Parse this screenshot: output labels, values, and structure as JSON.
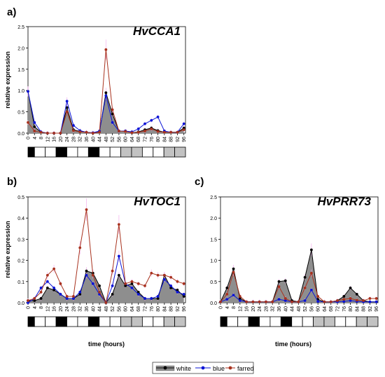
{
  "panel_labels": [
    "a)",
    "b)",
    "c)"
  ],
  "x_axis_title": "time (hours)",
  "y_axis_title": "relative expression",
  "legend_items": [
    {
      "name": "white",
      "color": "#000000"
    },
    {
      "name": "blue",
      "color": "#0a14d6"
    },
    {
      "name": "farred",
      "color": "#a8321e"
    }
  ],
  "colors": {
    "white_fill": "#8e8e8e",
    "error_bar": "#f2a6ec",
    "night_bar": "#000000",
    "day_bar": "#ffffff",
    "dim_bar": "#c2c2c2"
  },
  "chart_data": [
    {
      "type": "line",
      "title": "HvCCA1",
      "ylabel": "relative expression",
      "xlabel": "",
      "x": [
        0,
        4,
        8,
        12,
        16,
        20,
        24,
        28,
        32,
        36,
        40,
        44,
        48,
        52,
        56,
        60,
        64,
        68,
        72,
        76,
        80,
        84,
        88,
        92,
        96
      ],
      "x_tick_labels": [
        "0",
        "4",
        "8",
        "12",
        "16",
        "20",
        "24",
        "28",
        "32",
        "36",
        "40",
        "44",
        "48",
        "52",
        "56",
        "60",
        "64",
        "68",
        "72",
        "76",
        "80",
        "84",
        "88",
        "92",
        "96"
      ],
      "ylim": [
        0,
        2.5
      ],
      "y_ticks": [
        "0.0",
        "0.5",
        "1.0",
        "1.5",
        "2.0",
        "2.5"
      ],
      "light_regime": [
        "dark",
        "light",
        "light",
        "dark",
        "light",
        "light",
        "dark",
        "light",
        "light",
        "dim",
        "dim",
        "light",
        "light",
        "dim",
        "dim"
      ],
      "series": [
        {
          "name": "white",
          "values": [
            0.98,
            0.15,
            0.02,
            0.0,
            0.0,
            0.0,
            0.6,
            0.08,
            0.04,
            0.02,
            0.0,
            0.03,
            0.95,
            0.45,
            0.05,
            0.05,
            0.01,
            0.03,
            0.08,
            0.12,
            0.06,
            0.02,
            0.02,
            0.02,
            0.12
          ]
        },
        {
          "name": "blue",
          "values": [
            0.98,
            0.25,
            0.03,
            0.0,
            0.0,
            0.0,
            0.75,
            0.18,
            0.06,
            0.02,
            0.01,
            0.05,
            0.88,
            0.25,
            0.05,
            0.05,
            0.03,
            0.1,
            0.22,
            0.3,
            0.38,
            0.05,
            0.02,
            0.02,
            0.22
          ]
        },
        {
          "name": "farred",
          "values": [
            0.25,
            0.05,
            0.02,
            0.0,
            0.0,
            0.0,
            0.5,
            0.06,
            0.03,
            0.02,
            0.0,
            0.02,
            1.96,
            0.55,
            0.05,
            0.04,
            0.01,
            0.02,
            0.05,
            0.1,
            0.04,
            0.02,
            0.02,
            0.02,
            0.08
          ]
        }
      ]
    },
    {
      "type": "line",
      "title": "HvTOC1",
      "ylabel": "relative expression",
      "xlabel": "time (hours)",
      "x": [
        0,
        4,
        8,
        12,
        16,
        20,
        24,
        28,
        32,
        36,
        40,
        44,
        48,
        52,
        56,
        60,
        64,
        68,
        72,
        76,
        80,
        84,
        88,
        92,
        96
      ],
      "x_tick_labels": [
        "0",
        "4",
        "8",
        "12",
        "16",
        "20",
        "24",
        "28",
        "32",
        "36",
        "40",
        "44",
        "48",
        "52",
        "56",
        "60",
        "64",
        "68",
        "72",
        "76",
        "80",
        "84",
        "88",
        "92",
        "96"
      ],
      "ylim": [
        0,
        0.5
      ],
      "y_ticks": [
        "0.0",
        "0.1",
        "0.2",
        "0.3",
        "0.4",
        "0.5"
      ],
      "light_regime": [
        "dark",
        "light",
        "light",
        "dark",
        "light",
        "light",
        "dark",
        "light",
        "light",
        "dim",
        "dim",
        "light",
        "light",
        "dim",
        "dim"
      ],
      "series": [
        {
          "name": "white",
          "values": [
            0.01,
            0.01,
            0.02,
            0.07,
            0.06,
            0.04,
            0.02,
            0.02,
            0.04,
            0.15,
            0.14,
            0.08,
            0.0,
            0.04,
            0.13,
            0.08,
            0.09,
            0.05,
            0.02,
            0.02,
            0.02,
            0.13,
            0.07,
            0.06,
            0.03
          ]
        },
        {
          "name": "blue",
          "values": [
            0.0,
            0.02,
            0.07,
            0.1,
            0.07,
            0.04,
            0.02,
            0.02,
            0.05,
            0.13,
            0.09,
            0.04,
            0.0,
            0.08,
            0.22,
            0.09,
            0.07,
            0.04,
            0.02,
            0.02,
            0.03,
            0.11,
            0.08,
            0.05,
            0.04
          ]
        },
        {
          "name": "farred",
          "values": [
            0.01,
            0.02,
            0.05,
            0.13,
            0.16,
            0.09,
            0.03,
            0.03,
            0.26,
            0.44,
            0.13,
            0.05,
            0.0,
            0.15,
            0.37,
            0.09,
            0.1,
            0.09,
            0.08,
            0.14,
            0.13,
            0.13,
            0.12,
            0.1,
            0.09
          ]
        }
      ]
    },
    {
      "type": "line",
      "title": "HvPRR73",
      "ylabel": "",
      "xlabel": "time (hours)",
      "x": [
        0,
        4,
        8,
        12,
        16,
        20,
        24,
        28,
        32,
        36,
        40,
        44,
        48,
        52,
        56,
        60,
        64,
        68,
        72,
        76,
        80,
        84,
        88,
        92,
        96
      ],
      "x_tick_labels": [
        "0",
        "4",
        "8",
        "12",
        "16",
        "20",
        "24",
        "28",
        "32",
        "36",
        "40",
        "44",
        "48",
        "52",
        "56",
        "60",
        "64",
        "68",
        "72",
        "76",
        "80",
        "84",
        "88",
        "92",
        "96"
      ],
      "ylim": [
        0,
        2.5
      ],
      "y_ticks": [
        "0.0",
        "0.5",
        "1.0",
        "1.5",
        "2.0",
        "2.5"
      ],
      "light_regime": [
        "dark",
        "light",
        "light",
        "dark",
        "light",
        "light",
        "dark",
        "light",
        "light",
        "dim",
        "dim",
        "light",
        "light",
        "dim",
        "dim"
      ],
      "series": [
        {
          "name": "white",
          "values": [
            0.02,
            0.35,
            0.8,
            0.1,
            0.02,
            0.02,
            0.02,
            0.02,
            0.02,
            0.5,
            0.52,
            0.05,
            0.02,
            0.6,
            1.25,
            0.08,
            0.02,
            0.02,
            0.05,
            0.15,
            0.35,
            0.2,
            0.05,
            0.02,
            0.02
          ]
        },
        {
          "name": "blue",
          "values": [
            0.02,
            0.08,
            0.18,
            0.05,
            0.02,
            0.02,
            0.02,
            0.02,
            0.02,
            0.08,
            0.05,
            0.02,
            0.02,
            0.05,
            0.3,
            0.03,
            0.02,
            0.02,
            0.02,
            0.03,
            0.05,
            0.03,
            0.02,
            0.02,
            0.02
          ]
        },
        {
          "name": "farred",
          "values": [
            0.02,
            0.2,
            0.72,
            0.15,
            0.02,
            0.02,
            0.02,
            0.02,
            0.02,
            0.38,
            0.1,
            0.02,
            0.02,
            0.35,
            0.7,
            0.15,
            0.02,
            0.02,
            0.05,
            0.08,
            0.1,
            0.06,
            0.05,
            0.1,
            0.1
          ]
        }
      ]
    }
  ]
}
